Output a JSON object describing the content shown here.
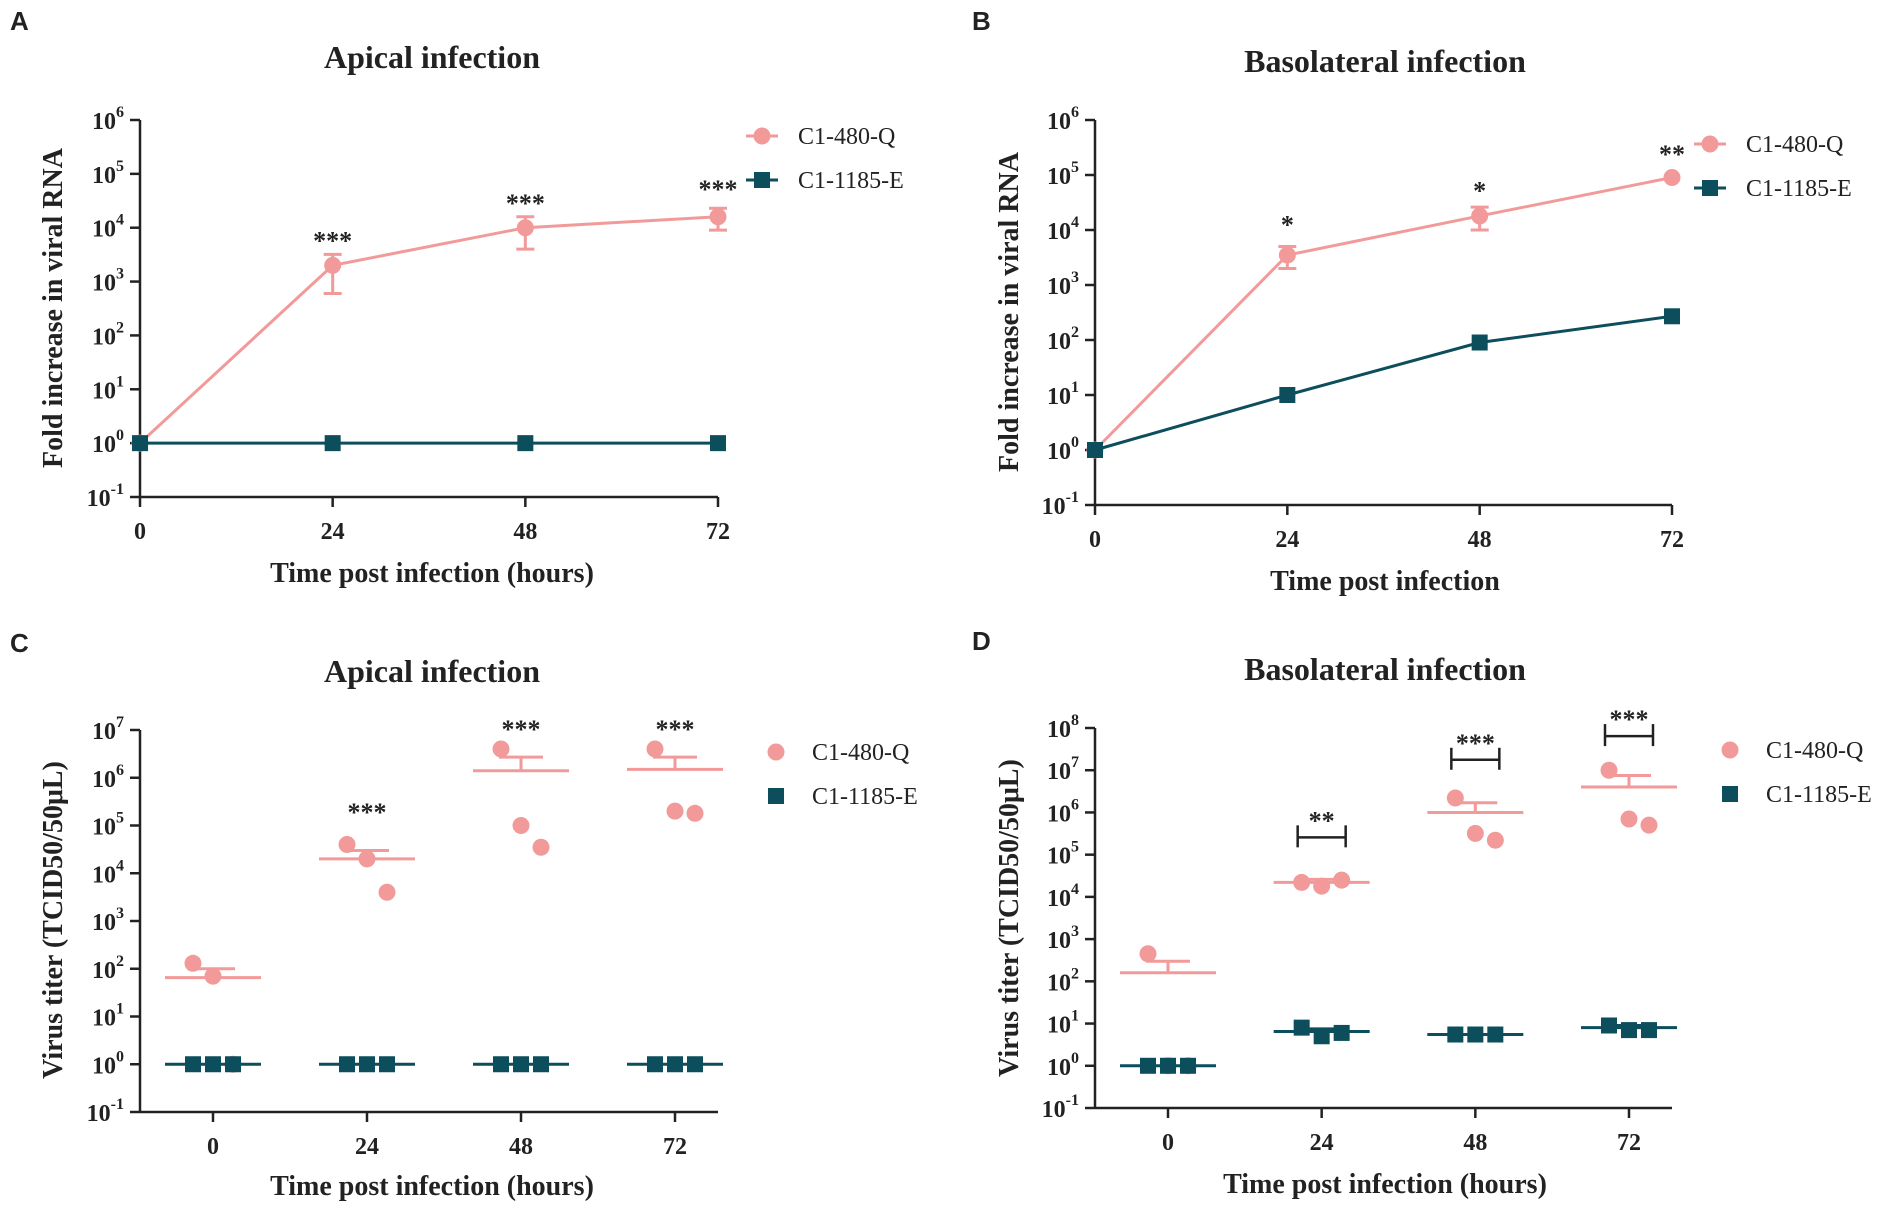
{
  "colors": {
    "pink": "#F29A9A",
    "teal": "#0C4E5C",
    "axis": "#222222"
  },
  "chart_data": [
    {
      "panel": "A",
      "type": "line",
      "title": "Apical infection",
      "xlabel": "Time post infection (hours)",
      "ylabel": "Fold increase in viral RNA",
      "x": [
        0,
        24,
        48,
        72
      ],
      "xticks": [
        "0",
        "24",
        "48",
        "72"
      ],
      "xlim": [
        0,
        72
      ],
      "ylim_log10": [
        -1,
        6
      ],
      "series": [
        {
          "name": "C1-480-Q",
          "color": "pink",
          "marker": "circle",
          "values": [
            1,
            2000,
            10000,
            16000
          ],
          "err_low": [
            1,
            600,
            4000,
            9000
          ],
          "err_high": [
            1,
            3200,
            16000,
            23000
          ]
        },
        {
          "name": "C1-1185-E",
          "color": "teal",
          "marker": "square",
          "values": [
            1,
            1,
            1,
            1
          ]
        }
      ],
      "annotations": [
        {
          "x": 24,
          "text": "***",
          "y": 6000
        },
        {
          "x": 48,
          "text": "***",
          "y": 30000
        },
        {
          "x": 72,
          "text": "***",
          "y": 55000
        }
      ]
    },
    {
      "panel": "B",
      "type": "line",
      "title": "Basolateral infection",
      "xlabel": "Time post infection",
      "ylabel": "Fold increase in viral RNA",
      "x": [
        0,
        24,
        48,
        72
      ],
      "xticks": [
        "0",
        "24",
        "48",
        "72"
      ],
      "xlim": [
        0,
        72
      ],
      "ylim_log10": [
        -1,
        6
      ],
      "series": [
        {
          "name": "C1-480-Q",
          "color": "pink",
          "marker": "circle",
          "values": [
            1,
            3500,
            18000,
            90000
          ],
          "err_low": [
            1,
            2000,
            10000,
            90000
          ],
          "err_high": [
            1,
            5000,
            26000,
            90000
          ]
        },
        {
          "name": "C1-1185-E",
          "color": "teal",
          "marker": "square",
          "values": [
            1,
            10,
            90,
            270
          ]
        }
      ],
      "annotations": [
        {
          "x": 24,
          "text": "*",
          "y": 13000
        },
        {
          "x": 48,
          "text": "*",
          "y": 55000
        },
        {
          "x": 72,
          "text": "**",
          "y": 250000
        }
      ]
    },
    {
      "panel": "C",
      "type": "scatter",
      "title": "Apical infection",
      "xlabel": "Time post infection (hours)",
      "ylabel": "Virus titer (TCID50/50μL)",
      "categories": [
        "0",
        "24",
        "48",
        "72"
      ],
      "ylim_log10": [
        -1,
        7
      ],
      "series": [
        {
          "name": "C1-480-Q",
          "color": "pink",
          "marker": "circle",
          "points": [
            [
              130,
              70,
              1
            ],
            [
              40000,
              20000,
              4000
            ],
            [
              4000000,
              100000,
              35000
            ],
            [
              4000000,
              200000,
              180000
            ]
          ],
          "mean": [
            65,
            20000,
            1400000,
            1500000
          ],
          "sem_top": [
            100,
            30000,
            2700000,
            2700000
          ]
        },
        {
          "name": "C1-1185-E",
          "color": "teal",
          "marker": "square",
          "points": [
            [
              1,
              1,
              1
            ],
            [
              1,
              1,
              1
            ],
            [
              1,
              1,
              1
            ],
            [
              1,
              1,
              1
            ]
          ],
          "mean": [
            1,
            1,
            1,
            1
          ],
          "sem_top": [
            1,
            1,
            1,
            1
          ]
        }
      ],
      "annotations": [
        {
          "category": "24",
          "text": "***",
          "y": 200000
        },
        {
          "category": "48",
          "text": "***",
          "y": 11000000
        },
        {
          "category": "72",
          "text": "***",
          "y": 11000000
        }
      ]
    },
    {
      "panel": "D",
      "type": "scatter",
      "title": "Basolateral infection",
      "xlabel": "Time post infection (hours)",
      "ylabel": "Virus titer (TCID50/50μL)",
      "categories": [
        "0",
        "24",
        "48",
        "72"
      ],
      "ylim_log10": [
        -1,
        8
      ],
      "series": [
        {
          "name": "C1-480-Q",
          "color": "pink",
          "marker": "circle",
          "points": [
            [
              450,
              1,
              1
            ],
            [
              22000,
              18000,
              25000
            ],
            [
              2200000,
              320000,
              220000
            ],
            [
              10000000,
              700000,
              500000
            ]
          ],
          "mean": [
            160,
            22000,
            1000000,
            4000000
          ],
          "sem_top": [
            300,
            26000,
            1700000,
            7500000
          ]
        },
        {
          "name": "C1-1185-E",
          "color": "teal",
          "marker": "square",
          "points": [
            [
              1,
              1,
              1
            ],
            [
              8,
              5,
              6
            ],
            [
              5.5,
              5.5,
              5.5
            ],
            [
              9,
              7,
              7
            ]
          ],
          "mean": [
            1,
            6.5,
            5.5,
            8
          ],
          "sem_top": [
            1,
            7.5,
            5.5,
            9
          ]
        }
      ],
      "annotations": [
        {
          "category": "24",
          "text": "**",
          "y": 320000,
          "bracket": true
        },
        {
          "category": "48",
          "text": "***",
          "y": 22000000,
          "bracket": true
        },
        {
          "category": "72",
          "text": "***",
          "y": 80000000,
          "bracket": true
        }
      ]
    }
  ]
}
